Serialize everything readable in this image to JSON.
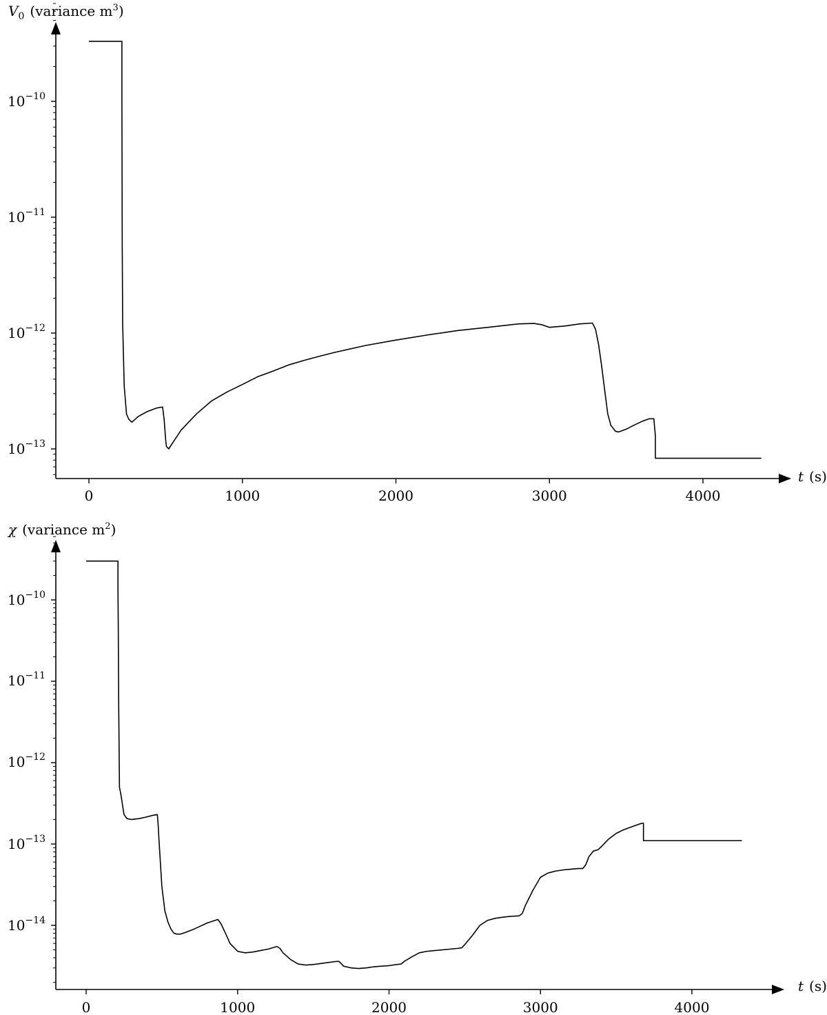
{
  "chart_data": [
    {
      "type": "line",
      "ylabel": {
        "symbol": "V",
        "sub": "0",
        "text": "(variance m",
        "sup": "3",
        "close": ")"
      },
      "xlabel": {
        "symbol": "t",
        "unit": "(s)"
      },
      "yscale": "log",
      "xlim": [
        -220,
        4550
      ],
      "ylim": [
        5.5e-14,
        9e-10
      ],
      "xticks": [
        0,
        1000,
        2000,
        3000,
        4000
      ],
      "xtick_labels": [
        "0",
        "1000",
        "2000",
        "3000",
        "4000"
      ],
      "ytick_exponents": [
        "−10",
        "−11",
        "−12",
        "−13"
      ],
      "grid": false,
      "legend": "none",
      "series": [
        {
          "color": "#000000",
          "x": [
            0,
            215,
            215,
            217,
            220,
            230,
            245,
            260,
            280,
            320,
            380,
            440,
            480,
            490,
            500,
            505,
            520,
            550,
            600,
            700,
            800,
            900,
            1000,
            1100,
            1200,
            1300,
            1400,
            1500,
            1600,
            1800,
            2000,
            2200,
            2400,
            2600,
            2800,
            2900,
            2950,
            3000,
            3100,
            3200,
            3280,
            3300,
            3320,
            3340,
            3360,
            3380,
            3400,
            3430,
            3450,
            3500,
            3550,
            3600,
            3650,
            3680,
            3690,
            3690,
            4380
          ],
          "y": [
            3.3e-10,
            3.3e-10,
            1e-10,
            6e-12,
            1.2e-12,
            3.5e-13,
            2e-13,
            1.8e-13,
            1.7e-13,
            1.9e-13,
            2.1e-13,
            2.25e-13,
            2.3e-13,
            1.8e-13,
            1.2e-13,
            1.05e-13,
            1e-13,
            1.15e-13,
            1.45e-13,
            2e-13,
            2.6e-13,
            3.1e-13,
            3.6e-13,
            4.2e-13,
            4.7e-13,
            5.3e-13,
            5.8e-13,
            6.3e-13,
            6.8e-13,
            7.8e-13,
            8.7e-13,
            9.6e-13,
            1.05e-12,
            1.12e-12,
            1.2e-12,
            1.21e-12,
            1.18e-12,
            1.12e-12,
            1.15e-12,
            1.2e-12,
            1.22e-12,
            1.08e-12,
            8e-13,
            5.2e-13,
            3.2e-13,
            2e-13,
            1.6e-13,
            1.42e-13,
            1.4e-13,
            1.48e-13,
            1.6e-13,
            1.72e-13,
            1.82e-13,
            1.82e-13,
            1.3e-13,
            8.3e-14,
            8.3e-14
          ]
        }
      ]
    },
    {
      "type": "line",
      "ylabel": {
        "symbol": "χ",
        "text": "(variance m",
        "sup": "2",
        "close": ")"
      },
      "xlabel": {
        "symbol": "t",
        "unit": "(s)"
      },
      "yscale": "log",
      "xlim": [
        -220,
        4550
      ],
      "ylim": [
        1.5e-15,
        6e-10
      ],
      "xticks": [
        0,
        1000,
        2000,
        3000,
        4000
      ],
      "xtick_labels": [
        "0",
        "1000",
        "2000",
        "3000",
        "4000"
      ],
      "ytick_exponents": [
        "−10",
        "−11",
        "−12",
        "−13",
        "−14"
      ],
      "grid": false,
      "legend": "none",
      "series": [
        {
          "color": "#000000",
          "x": [
            0,
            210,
            210,
            212,
            215,
            220,
            230,
            250,
            270,
            300,
            350,
            400,
            440,
            470,
            475,
            480,
            490,
            500,
            520,
            540,
            560,
            580,
            600,
            620,
            650,
            700,
            750,
            800,
            850,
            870,
            890,
            920,
            950,
            1000,
            1050,
            1100,
            1150,
            1200,
            1260,
            1280,
            1300,
            1350,
            1400,
            1450,
            1500,
            1550,
            1600,
            1650,
            1670,
            1680,
            1700,
            1750,
            1800,
            1850,
            1900,
            1950,
            2000,
            2050,
            2080,
            2100,
            2150,
            2200,
            2250,
            2300,
            2350,
            2400,
            2450,
            2480,
            2500,
            2550,
            2600,
            2650,
            2700,
            2750,
            2800,
            2860,
            2880,
            2900,
            2950,
            3000,
            3050,
            3100,
            3150,
            3200,
            3250,
            3280,
            3300,
            3320,
            3350,
            3380,
            3400,
            3450,
            3500,
            3550,
            3600,
            3650,
            3670,
            3680,
            3680,
            4330
          ],
          "y": [
            3e-10,
            3e-10,
            1.5e-10,
            5e-11,
            5e-12,
            5e-13,
            4e-13,
            2.3e-13,
            2.05e-13,
            2e-13,
            2.05e-13,
            2.15e-13,
            2.25e-13,
            2.3e-13,
            1.8e-13,
            1.2e-13,
            6e-14,
            3e-14,
            1.5e-14,
            1.1e-14,
            9e-15,
            8e-15,
            7.8e-15,
            7.8e-15,
            8.1e-15,
            8.8e-15,
            9.7e-15,
            1.07e-14,
            1.15e-14,
            1.18e-14,
            1.05e-14,
            8e-15,
            6e-15,
            4.8e-15,
            4.6e-15,
            4.7e-15,
            4.9e-15,
            5.1e-15,
            5.5e-15,
            5.2e-15,
            4.6e-15,
            3.8e-15,
            3.35e-15,
            3.25e-15,
            3.3e-15,
            3.4e-15,
            3.5e-15,
            3.6e-15,
            3.6e-15,
            3.45e-15,
            3.15e-15,
            3e-15,
            2.95e-15,
            3e-15,
            3.1e-15,
            3.15e-15,
            3.2e-15,
            3.3e-15,
            3.35e-15,
            3.6e-15,
            4.1e-15,
            4.6e-15,
            4.8e-15,
            4.9e-15,
            5e-15,
            5.1e-15,
            5.2e-15,
            5.3e-15,
            5.8e-15,
            7.5e-15,
            1e-14,
            1.15e-14,
            1.22e-14,
            1.26e-14,
            1.29e-14,
            1.31e-14,
            1.4e-14,
            1.75e-14,
            2.7e-14,
            3.9e-14,
            4.4e-14,
            4.65e-14,
            4.8e-14,
            4.9e-14,
            5e-14,
            5e-14,
            5.6e-14,
            7e-14,
            8.2e-14,
            8.5e-14,
            9.2e-14,
            1.15e-13,
            1.35e-13,
            1.5e-13,
            1.62e-13,
            1.75e-13,
            1.8e-13,
            1.8e-13,
            1.1e-13,
            1.1e-13
          ]
        }
      ]
    }
  ]
}
